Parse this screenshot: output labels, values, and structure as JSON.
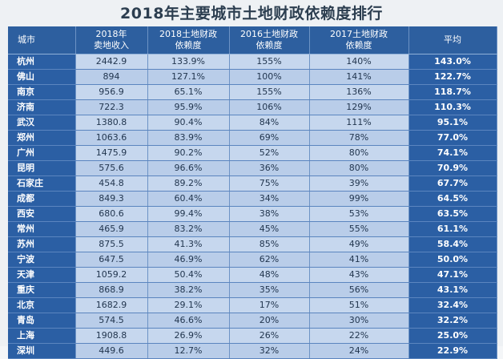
{
  "title": "2018年主要城市土地财政依赖度排行",
  "headers": [
    "城市",
    "2018年\n卖地收入",
    "2018土地财政\n依赖度",
    "2016土地财政\n依赖度",
    "2017土地财政\n依赖度",
    "平均"
  ],
  "rows": [
    [
      "杭州",
      "2442.9",
      "133.9%",
      "155%",
      "140%",
      "143.0%"
    ],
    [
      "佛山",
      "894",
      "127.1%",
      "100%",
      "141%",
      "122.7%"
    ],
    [
      "南京",
      "956.9",
      "65.1%",
      "155%",
      "136%",
      "118.7%"
    ],
    [
      "济南",
      "722.3",
      "95.9%",
      "106%",
      "129%",
      "110.3%"
    ],
    [
      "武汉",
      "1380.8",
      "90.4%",
      "84%",
      "111%",
      "95.1%"
    ],
    [
      "郑州",
      "1063.6",
      "83.9%",
      "69%",
      "78%",
      "77.0%"
    ],
    [
      "广州",
      "1475.9",
      "90.2%",
      "52%",
      "80%",
      "74.1%"
    ],
    [
      "昆明",
      "575.6",
      "96.6%",
      "36%",
      "80%",
      "70.9%"
    ],
    [
      "石家庄",
      "454.8",
      "89.2%",
      "75%",
      "39%",
      "67.7%"
    ],
    [
      "成都",
      "849.3",
      "60.4%",
      "34%",
      "99%",
      "64.5%"
    ],
    [
      "西安",
      "680.6",
      "99.4%",
      "38%",
      "53%",
      "63.5%"
    ],
    [
      "常州",
      "465.9",
      "83.2%",
      "45%",
      "55%",
      "61.1%"
    ],
    [
      "苏州",
      "875.5",
      "41.3%",
      "85%",
      "49%",
      "58.4%"
    ],
    [
      "宁波",
      "647.5",
      "46.9%",
      "62%",
      "41%",
      "50.0%"
    ],
    [
      "天津",
      "1059.2",
      "50.4%",
      "48%",
      "43%",
      "47.1%"
    ],
    [
      "重庆",
      "868.9",
      "38.2%",
      "35%",
      "56%",
      "43.1%"
    ],
    [
      "北京",
      "1682.9",
      "29.1%",
      "17%",
      "51%",
      "32.4%"
    ],
    [
      "青岛",
      "574.5",
      "46.6%",
      "20%",
      "30%",
      "32.2%"
    ],
    [
      "上海",
      "1908.8",
      "26.9%",
      "26%",
      "22%",
      "25.0%"
    ],
    [
      "深圳",
      "449.6",
      "12.7%",
      "32%",
      "24%",
      "22.9%"
    ]
  ]
}
